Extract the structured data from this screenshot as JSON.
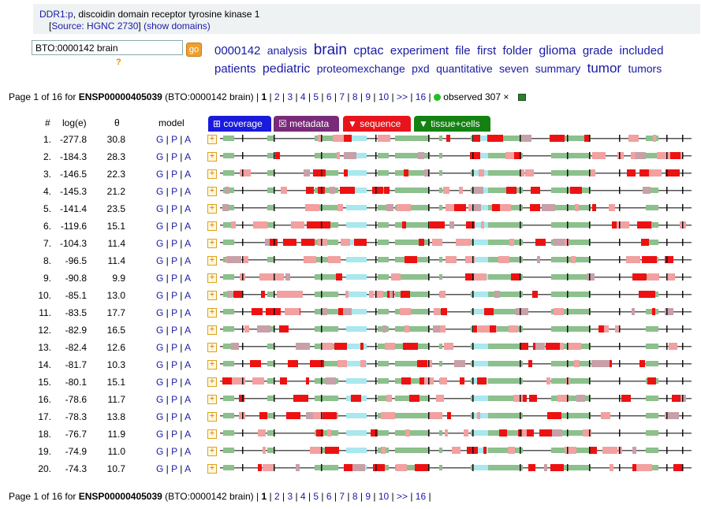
{
  "header": {
    "gene_link": "DDR1:p",
    "gene_desc": ", discoidin domain receptor tyrosine kinase 1",
    "source_open": "[",
    "source_link": "Source: HGNC 2730",
    "source_close": "]",
    "show_domains": "(show domains)"
  },
  "search": {
    "value": "BTO:0000142 brain",
    "go_label": "go",
    "help": "?"
  },
  "tag_cloud": [
    {
      "text": "0000142",
      "size": 15
    },
    {
      "text": "analysis",
      "size": 14
    },
    {
      "text": "brain",
      "size": 19
    },
    {
      "text": "cptac",
      "size": 16
    },
    {
      "text": "experiment",
      "size": 15
    },
    {
      "text": "file",
      "size": 15
    },
    {
      "text": "first",
      "size": 15
    },
    {
      "text": "folder",
      "size": 15
    },
    {
      "text": "glioma",
      "size": 16
    },
    {
      "text": "grade",
      "size": 15
    },
    {
      "text": "included",
      "size": 15
    },
    {
      "text": "patients",
      "size": 15
    },
    {
      "text": "pediatric",
      "size": 16
    },
    {
      "text": "proteomexchange",
      "size": 14
    },
    {
      "text": "pxd",
      "size": 14
    },
    {
      "text": "quantitative",
      "size": 14
    },
    {
      "text": "seven",
      "size": 14
    },
    {
      "text": "summary",
      "size": 14
    },
    {
      "text": "tumor",
      "size": 17
    },
    {
      "text": "tumors",
      "size": 14
    }
  ],
  "pager": {
    "prefix": "Page 1 of 16 for ",
    "protein": "ENSP00000405039",
    "context": " (BTO:0000142 brain) | ",
    "current": "1",
    "pages": [
      "2",
      "3",
      "4",
      "5",
      "6",
      "7",
      "8",
      "9",
      "10",
      ">>",
      "16"
    ],
    "observed": "observed 307 ×"
  },
  "columns": {
    "num": "#",
    "loge": "log(e)",
    "theta": "θ",
    "model": "model"
  },
  "tabs": {
    "coverage": "⊞ coverage",
    "metadata": "☒ metadata",
    "sequence": "▼ sequence",
    "tissue": "▼ tissue+cells"
  },
  "model_links": [
    "G",
    "P",
    "A"
  ],
  "rows": [
    {
      "n": "1.",
      "loge": "-277.8",
      "theta": "30.8"
    },
    {
      "n": "2.",
      "loge": "-184.3",
      "theta": "28.3"
    },
    {
      "n": "3.",
      "loge": "-146.5",
      "theta": "22.3"
    },
    {
      "n": "4.",
      "loge": "-145.3",
      "theta": "21.2"
    },
    {
      "n": "5.",
      "loge": "-141.4",
      "theta": "23.5"
    },
    {
      "n": "6.",
      "loge": "-119.6",
      "theta": "15.1"
    },
    {
      "n": "7.",
      "loge": "-104.3",
      "theta": "11.4"
    },
    {
      "n": "8.",
      "loge": "-96.5",
      "theta": "11.4"
    },
    {
      "n": "9.",
      "loge": "-90.8",
      "theta": "9.9"
    },
    {
      "n": "10.",
      "loge": "-85.1",
      "theta": "13.0"
    },
    {
      "n": "11.",
      "loge": "-83.5",
      "theta": "17.7"
    },
    {
      "n": "12.",
      "loge": "-82.9",
      "theta": "16.5"
    },
    {
      "n": "13.",
      "loge": "-82.4",
      "theta": "12.6"
    },
    {
      "n": "14.",
      "loge": "-81.7",
      "theta": "10.3"
    },
    {
      "n": "15.",
      "loge": "-80.1",
      "theta": "15.1"
    },
    {
      "n": "16.",
      "loge": "-78.6",
      "theta": "11.7"
    },
    {
      "n": "17.",
      "loge": "-78.3",
      "theta": "13.8"
    },
    {
      "n": "18.",
      "loge": "-76.7",
      "theta": "11.9"
    },
    {
      "n": "19.",
      "loge": "-74.9",
      "theta": "11.0"
    },
    {
      "n": "20.",
      "loge": "-74.3",
      "theta": "10.7"
    }
  ],
  "colors": {
    "coverage_tab": "#1a1adc",
    "metadata_tab": "#7a2a7a",
    "sequence_tab": "#e8141c",
    "tissue_tab": "#138213",
    "domain_green": "#8cc08c",
    "cyan": "#a8e8ee",
    "red": "#ee1111",
    "pink": "#f2a0a0",
    "mauve": "#c8a0a8"
  }
}
